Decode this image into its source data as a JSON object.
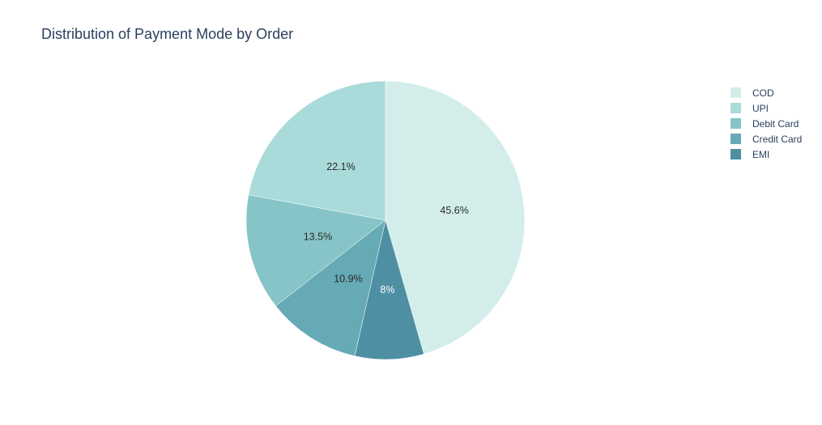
{
  "chart_data": {
    "type": "pie",
    "title": "Distribution of Payment Mode by Order",
    "categories": [
      "COD",
      "UPI",
      "Debit Card",
      "Credit Card",
      "EMI"
    ],
    "values": [
      45.6,
      22.1,
      13.5,
      10.9,
      8.0
    ],
    "labels": [
      "45.6%",
      "22.1%",
      "13.5%",
      "10.9%",
      "8%"
    ],
    "colors": [
      "#d3eeea",
      "#a9dbda",
      "#86c4c7",
      "#66aab5",
      "#4f8fa4"
    ],
    "label_colors": [
      "#2a2a2a",
      "#2a2a2a",
      "#2a2a2a",
      "#2a2a2a",
      "#ffffff"
    ],
    "slice_order": [
      "COD",
      "EMI",
      "Credit Card",
      "Debit Card",
      "UPI"
    ],
    "direction": "clockwise",
    "start": "12 o'clock",
    "legend_position": "top-right"
  }
}
